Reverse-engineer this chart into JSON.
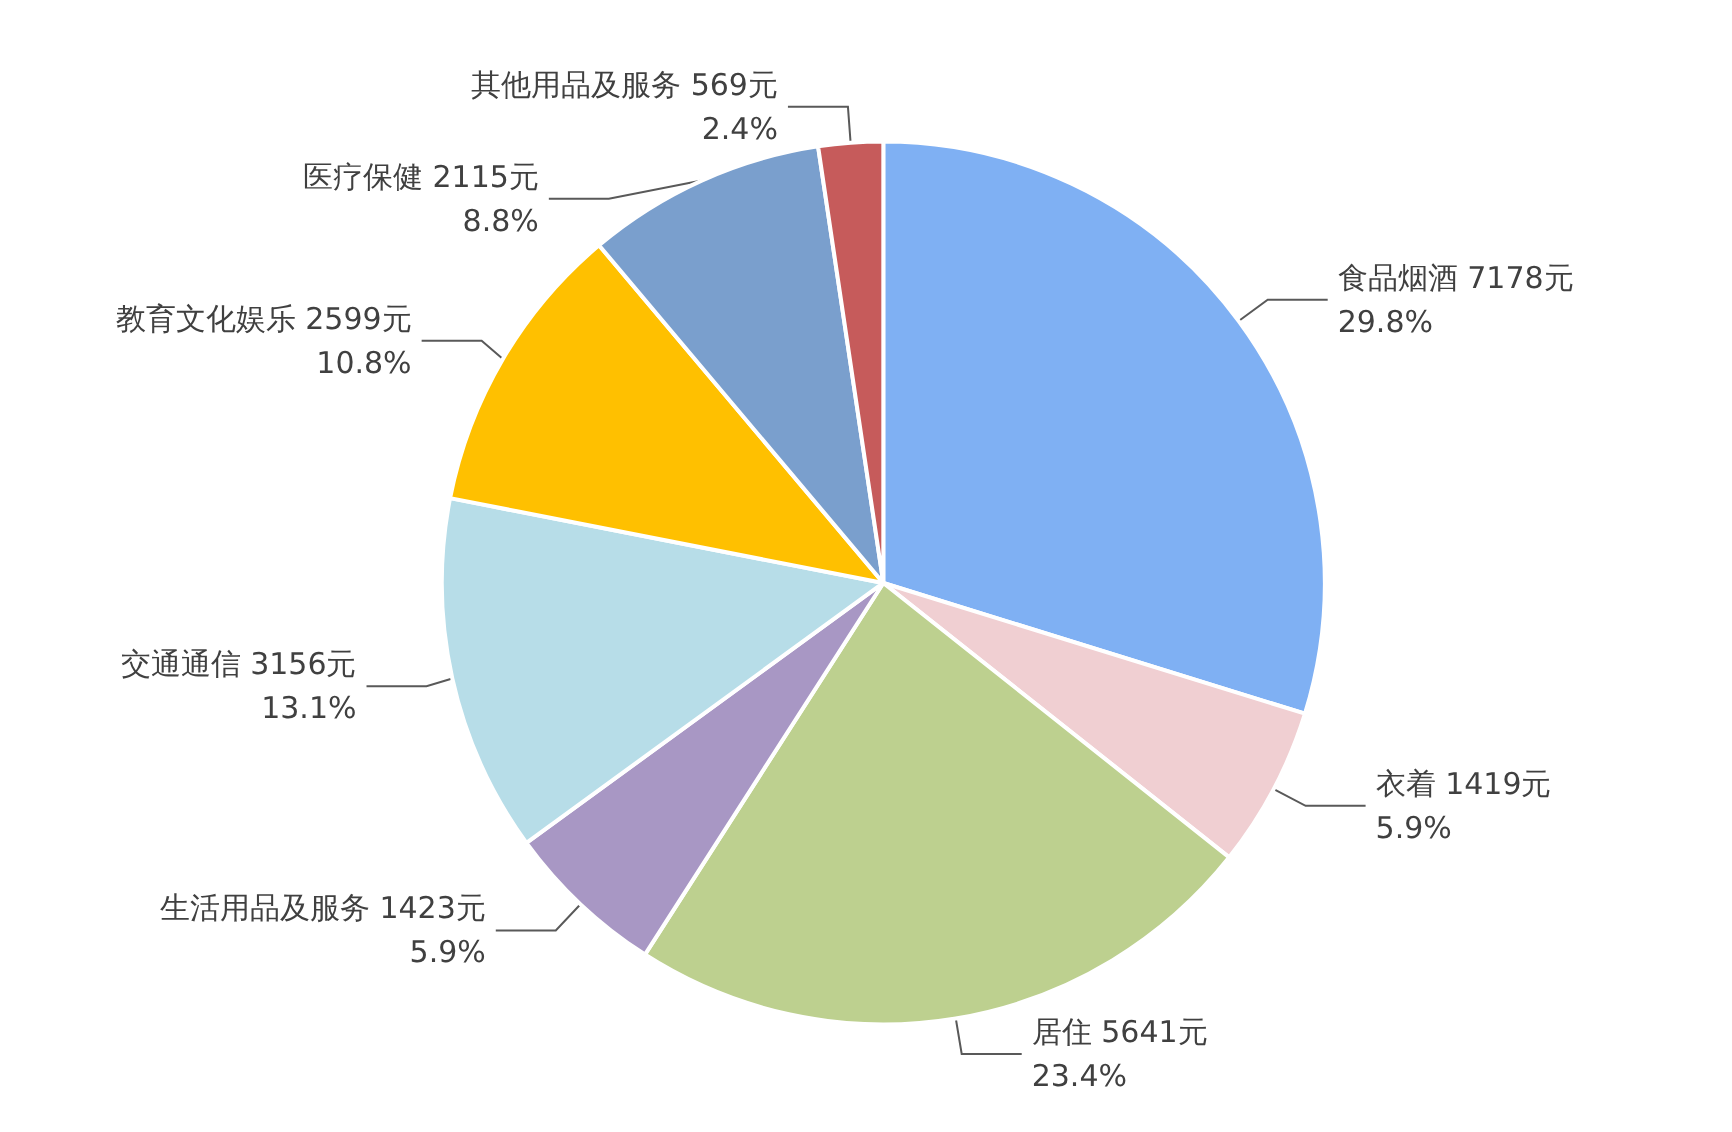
{
  "chart_data": {
    "type": "pie",
    "categories": [
      "食品烟酒",
      "衣着",
      "居住",
      "生活用品及服务",
      "交通通信",
      "教育文化娱乐",
      "医疗保健",
      "其他用品及服务"
    ],
    "values": [
      7178,
      1419,
      5641,
      1423,
      3156,
      2599,
      2115,
      569
    ],
    "value_labels": [
      "7178元\n29.8%",
      "1419元\n5.9%",
      "5641元\n23.4%",
      "1423元\n5.9%",
      "3156元\n13.1%",
      "2599元\n10.8%",
      "2115元\n8.8%",
      "569元\n2.4%"
    ],
    "colors": [
      "#7fb0f3",
      "#f0cfd2",
      "#bdd08f",
      "#a897c4",
      "#b7dde8",
      "#ffc000",
      "#7a9fcd",
      "#c65b5b"
    ],
    "legend": false
  }
}
